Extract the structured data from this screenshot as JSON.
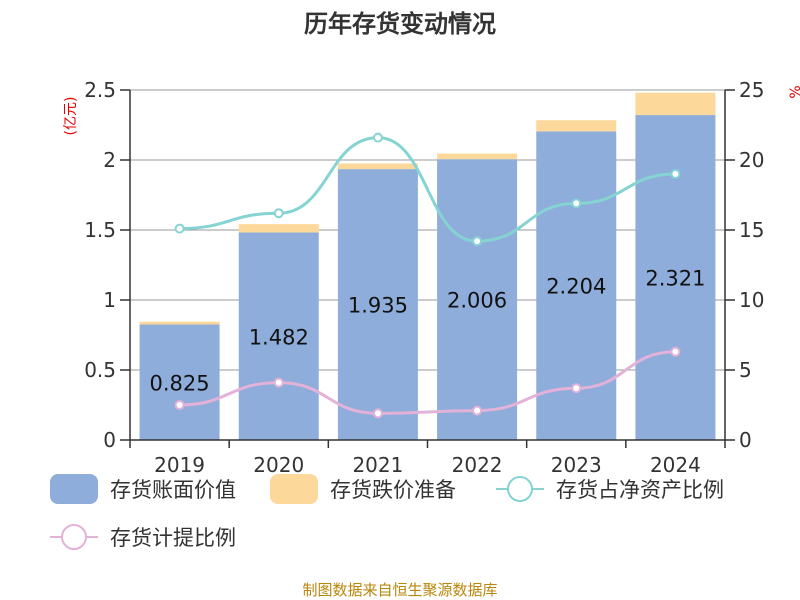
{
  "title": "历年存货变动情况",
  "source": "制图数据来自恒生聚源数据库",
  "left_axis_unit": "(亿元)",
  "right_axis_unit": "%",
  "colors": {
    "book_value": "#8eaddb",
    "provision": "#fcd99a",
    "ratio_net_assets": "#86d3d3",
    "provision_ratio": "#e3b2d8",
    "unit": "#e00000",
    "source": "#b8860b"
  },
  "legend": [
    {
      "label": "存货账面价值",
      "type": "bar",
      "color": "#8eaddb"
    },
    {
      "label": "存货跌价准备",
      "type": "bar",
      "color": "#fcd99a"
    },
    {
      "label": "存货占净资产比例",
      "type": "line",
      "color": "#86d3d3"
    },
    {
      "label": "存货计提比例",
      "type": "line",
      "color": "#e3b2d8"
    }
  ],
  "chart_data": {
    "type": "bar",
    "title": "历年存货变动情况",
    "categories": [
      "2019",
      "2020",
      "2021",
      "2022",
      "2023",
      "2024"
    ],
    "left_axis": {
      "unit": "(亿元)",
      "min": 0,
      "max": 2.5,
      "ticks": [
        "0",
        "0.5",
        "1",
        "1.5",
        "2",
        "2.5"
      ]
    },
    "right_axis": {
      "unit": "%",
      "min": 0,
      "max": 25,
      "ticks": [
        "0",
        "5",
        "10",
        "15",
        "20",
        "25"
      ]
    },
    "grid": true,
    "legend_position": "bottom",
    "series": [
      {
        "name": "存货账面价值",
        "type": "bar",
        "stack": "inventory",
        "axis": "left",
        "values": [
          0.825,
          1.482,
          1.935,
          2.006,
          2.204,
          2.321
        ],
        "labels": [
          "0.825",
          "1.482",
          "1.935",
          "2.006",
          "2.204",
          "2.321"
        ]
      },
      {
        "name": "存货跌价准备",
        "type": "bar",
        "stack": "inventory",
        "axis": "left",
        "values": [
          0.02,
          0.06,
          0.04,
          0.04,
          0.08,
          0.16
        ]
      },
      {
        "name": "存货占净资产比例",
        "type": "line",
        "axis": "right",
        "values": [
          15.1,
          16.2,
          21.6,
          14.2,
          16.9,
          19.0
        ]
      },
      {
        "name": "存货计提比例",
        "type": "line",
        "axis": "right",
        "values": [
          2.5,
          4.1,
          1.9,
          2.1,
          3.7,
          6.3
        ]
      }
    ]
  }
}
